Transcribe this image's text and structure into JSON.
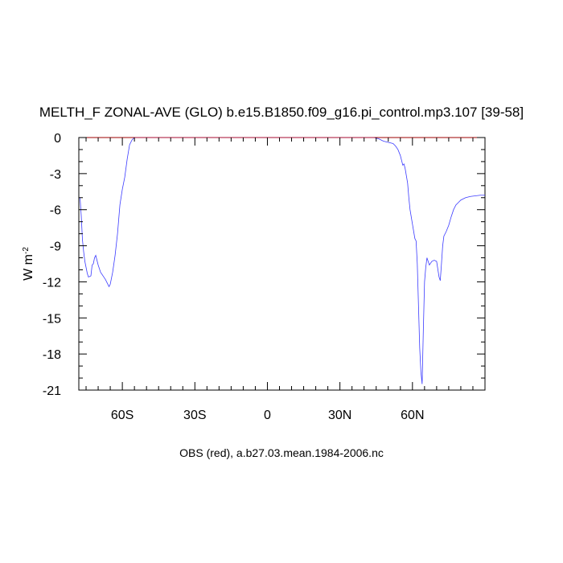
{
  "chart_data": {
    "type": "line",
    "title": "MELTH_F ZONAL-AVE (GLO) b.e15.B1850.f09_g16.pi_control.mp3.107 [39-58]",
    "ylabel_base": "W m",
    "ylabel_exp": "-2",
    "annotation": "OBS (red), a.b27.03.mean.1984-2006.nc",
    "xlim": [
      -78,
      90
    ],
    "ylim": [
      -21,
      0
    ],
    "x_ticks": [
      {
        "value": -60,
        "label": "60S"
      },
      {
        "value": -30,
        "label": "30S"
      },
      {
        "value": 0,
        "label": "0"
      },
      {
        "value": 30,
        "label": "30N"
      },
      {
        "value": 60,
        "label": "60N"
      }
    ],
    "y_ticks": [
      {
        "value": 0,
        "label": "0"
      },
      {
        "value": -3,
        "label": "-3"
      },
      {
        "value": -6,
        "label": "-6"
      },
      {
        "value": -9,
        "label": "-9"
      },
      {
        "value": -12,
        "label": "-12"
      },
      {
        "value": -15,
        "label": "-15"
      },
      {
        "value": -18,
        "label": "-18"
      },
      {
        "value": -21,
        "label": "-21"
      }
    ],
    "grid": false,
    "series": [
      {
        "color": "#3b3bff",
        "x": [
          -77.5,
          -77,
          -76.5,
          -76,
          -75.5,
          -75,
          -74.5,
          -74,
          -73,
          -72.5,
          -72,
          -71.5,
          -71,
          -70,
          -69,
          -68,
          -67,
          -66,
          -65.5,
          -65,
          -64,
          -63,
          -62,
          -61,
          -60,
          -59,
          -58,
          -57,
          -56,
          -55,
          -54,
          -53,
          -50,
          -40,
          -20,
          0,
          20,
          40,
          44,
          46,
          48,
          50,
          52,
          53,
          54,
          55,
          56,
          56.5,
          57,
          58,
          58.5,
          59,
          60,
          61,
          61.5,
          62,
          62.5,
          63,
          63.5,
          64,
          64.5,
          65,
          65.5,
          66,
          67,
          68,
          69,
          70,
          71,
          71.5,
          72,
          72.5,
          73,
          74,
          75,
          76,
          77,
          78,
          79,
          80,
          82,
          84,
          86,
          88,
          90
        ],
        "y": [
          -5,
          -6.5,
          -8.5,
          -9.5,
          -10.3,
          -10.8,
          -11.3,
          -11.6,
          -11.5,
          -10.6,
          -10.5,
          -10.0,
          -9.8,
          -10.6,
          -11.2,
          -11.5,
          -11.8,
          -12.2,
          -12.4,
          -12.2,
          -11.2,
          -9.8,
          -8,
          -5.6,
          -4.3,
          -3.3,
          -1.8,
          -0.6,
          -0.2,
          0,
          0,
          0,
          0,
          0,
          0,
          0,
          0,
          0,
          0,
          -0.1,
          -0.3,
          -0.4,
          -0.5,
          -0.7,
          -1.0,
          -1.5,
          -2.3,
          -2.2,
          -2.6,
          -3.8,
          -5.0,
          -6.0,
          -7.2,
          -8.4,
          -8.6,
          -10.5,
          -14,
          -17.5,
          -19.5,
          -20.5,
          -16,
          -12,
          -10.8,
          -10.0,
          -10.6,
          -10.3,
          -10.2,
          -10.3,
          -11.6,
          -11.9,
          -10.5,
          -9,
          -8.2,
          -7.8,
          -7.3,
          -6.6,
          -6,
          -5.6,
          -5.4,
          -5.2,
          -5.0,
          -4.9,
          -4.85,
          -4.8,
          -4.8
        ]
      },
      {
        "color": "#d00000",
        "x": [
          -78,
          90
        ],
        "y": [
          0,
          0
        ]
      }
    ]
  }
}
